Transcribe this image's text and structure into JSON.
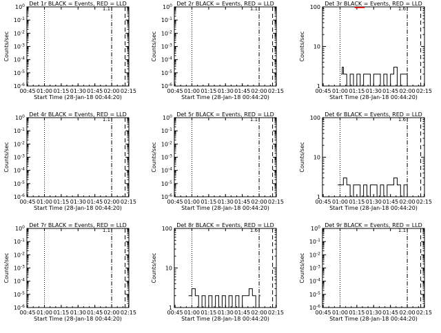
{
  "figure": {
    "background": "#ffffff",
    "ink": "#000000",
    "lld_color": "#ff0000"
  },
  "chart_data": [
    {
      "type": "line",
      "panel": "det-1r",
      "title": "Det 1r BLACK = Events, RED = LLD",
      "xlabel": "Start Time (28-Jan-18 00:44:20)",
      "ylabel": "Counts/sec",
      "xticks": [
        "00:45",
        "01:00",
        "01:15",
        "01:30",
        "01:45",
        "02:00",
        "02:15"
      ],
      "yscale": "log",
      "yticks": [
        "10^0",
        "10^-1",
        "10^-2",
        "10^-3",
        "10^-4",
        "10^-5",
        "10^-6"
      ],
      "ylim": [
        1e-06,
        1
      ],
      "series": [],
      "events_at_end": "1.1",
      "markers": [
        {
          "time": "01:00",
          "style": "dotted"
        },
        {
          "time": "02:00",
          "style": "dash-dot"
        },
        {
          "time": "02:12",
          "style": "dashed"
        }
      ]
    },
    {
      "type": "line",
      "panel": "det-2r",
      "title": "Det 2r BLACK = Events, RED = LLD",
      "xlabel": "Start Time (28-Jan-18 00:44:20)",
      "ylabel": "Counts/sec",
      "xticks": [
        "00:45",
        "01:00",
        "01:15",
        "01:30",
        "01:45",
        "02:00",
        "02:15"
      ],
      "yscale": "log",
      "yticks": [
        "10^0",
        "10^-1",
        "10^-2",
        "10^-3",
        "10^-4",
        "10^-5",
        "10^-6"
      ],
      "ylim": [
        1e-06,
        1
      ],
      "series": [],
      "events_at_end": "1.1",
      "markers": [
        {
          "time": "01:00",
          "style": "dotted"
        },
        {
          "time": "02:00",
          "style": "dash-dot"
        },
        {
          "time": "02:12",
          "style": "dashed"
        }
      ]
    },
    {
      "type": "line",
      "panel": "det-3r",
      "title": "Det 3r BLACK = Events, RED = LLD",
      "xlabel": "Start Time (28-Jan-18 00:44:20)",
      "ylabel": "Counts/sec",
      "xticks": [
        "00:45",
        "01:00",
        "01:15",
        "01:30",
        "01:45",
        "02:00",
        "02:15"
      ],
      "yscale": "log",
      "yticks": [
        "100",
        "10",
        "1"
      ],
      "ylim": [
        1,
        100
      ],
      "series": [
        {
          "color": "black",
          "x": [
            "01:01",
            "01:02",
            "01:03",
            "01:06",
            "01:09",
            "01:12",
            "01:15",
            "01:18",
            "01:21",
            "01:24",
            "01:27",
            "01:30",
            "01:33",
            "01:36",
            "01:39",
            "01:42",
            "01:45",
            "01:48",
            "01:51",
            "01:54",
            "01:57",
            "02:00"
          ],
          "y": [
            2.0,
            3.0,
            2.0,
            1.0,
            2.0,
            1.0,
            2.0,
            1.0,
            2.0,
            2.0,
            1.0,
            2.0,
            2.0,
            1.0,
            2.0,
            1.0,
            2.0,
            3.0,
            1.0,
            2.0,
            2.0,
            1.0
          ]
        },
        {
          "color": "red",
          "x": [
            "01:13",
            "01:22"
          ],
          "y": [
            100,
            100
          ]
        }
      ],
      "events_at_end": "1.6",
      "markers": [
        {
          "time": "01:00",
          "style": "dotted"
        },
        {
          "time": "02:00",
          "style": "dash-dot"
        },
        {
          "time": "02:12",
          "style": "dashed"
        }
      ]
    },
    {
      "type": "line",
      "panel": "det-4r",
      "title": "Det 4r BLACK = Events, RED = LLD",
      "xlabel": "Start Time (28-Jan-18 00:44:20)",
      "ylabel": "Counts/sec",
      "xticks": [
        "00:45",
        "01:00",
        "01:15",
        "01:30",
        "01:45",
        "02:00",
        "02:15"
      ],
      "yscale": "log",
      "yticks": [
        "10^0",
        "10^-1",
        "10^-2",
        "10^-3",
        "10^-4",
        "10^-5",
        "10^-6"
      ],
      "ylim": [
        1e-06,
        1
      ],
      "series": [],
      "events_at_end": "1.1",
      "markers": [
        {
          "time": "01:00",
          "style": "dotted"
        },
        {
          "time": "02:00",
          "style": "dash-dot"
        },
        {
          "time": "02:12",
          "style": "dashed"
        }
      ]
    },
    {
      "type": "line",
      "panel": "det-5r",
      "title": "Det 5r BLACK = Events, RED = LLD",
      "xlabel": "Start Time (28-Jan-18 00:44:20)",
      "ylabel": "Counts/sec",
      "xticks": [
        "00:45",
        "01:00",
        "01:15",
        "01:30",
        "01:45",
        "02:00",
        "02:15"
      ],
      "yscale": "log",
      "yticks": [
        "10^0",
        "10^-1",
        "10^-2",
        "10^-3",
        "10^-4",
        "10^-5",
        "10^-6"
      ],
      "ylim": [
        1e-06,
        1
      ],
      "series": [],
      "events_at_end": "1.1",
      "markers": [
        {
          "time": "01:00",
          "style": "dotted"
        },
        {
          "time": "02:00",
          "style": "dash-dot"
        },
        {
          "time": "02:12",
          "style": "dashed"
        }
      ]
    },
    {
      "type": "line",
      "panel": "det-6r",
      "title": "Det 6r BLACK = Events, RED = LLD",
      "xlabel": "Start Time (28-Jan-18 00:44:20)",
      "ylabel": "Counts/sec",
      "xticks": [
        "00:45",
        "01:00",
        "01:15",
        "01:30",
        "01:45",
        "02:00",
        "02:15"
      ],
      "yscale": "log",
      "yticks": [
        "100",
        "10",
        "1"
      ],
      "ylim": [
        1,
        100
      ],
      "series": [
        {
          "color": "black",
          "x": [
            "00:58",
            "01:01",
            "01:03",
            "01:06",
            "01:09",
            "01:12",
            "01:15",
            "01:18",
            "01:21",
            "01:24",
            "01:27",
            "01:30",
            "01:33",
            "01:36",
            "01:39",
            "01:42",
            "01:45",
            "01:48",
            "01:51",
            "01:54",
            "01:57",
            "02:00"
          ],
          "y": [
            2.0,
            2.0,
            3.0,
            2.0,
            1.0,
            2.0,
            2.0,
            1.0,
            2.0,
            1.0,
            2.0,
            2.0,
            1.0,
            2.0,
            1.0,
            2.0,
            2.0,
            3.0,
            2.0,
            1.0,
            2.0,
            1.0
          ]
        }
      ],
      "events_at_end": "1.6",
      "markers": [
        {
          "time": "01:00",
          "style": "dotted"
        },
        {
          "time": "02:00",
          "style": "dash-dot"
        },
        {
          "time": "02:12",
          "style": "dashed"
        }
      ]
    },
    {
      "type": "line",
      "panel": "det-7r",
      "title": "Det 7r BLACK = Events, RED = LLD",
      "xlabel": "Start Time (28-Jan-18 00:44:20)",
      "ylabel": "Counts/sec",
      "xticks": [
        "00:45",
        "01:00",
        "01:15",
        "01:30",
        "01:45",
        "02:00",
        "02:15"
      ],
      "yscale": "log",
      "yticks": [
        "10^0",
        "10^-1",
        "10^-2",
        "10^-3",
        "10^-4",
        "10^-5",
        "10^-6"
      ],
      "ylim": [
        1e-06,
        1
      ],
      "series": [],
      "events_at_end": "1.1",
      "markers": [
        {
          "time": "01:00",
          "style": "dotted"
        },
        {
          "time": "02:00",
          "style": "dash-dot"
        },
        {
          "time": "02:12",
          "style": "dashed"
        }
      ]
    },
    {
      "type": "line",
      "panel": "det-8r",
      "title": "Det 8r BLACK = Events, RED = LLD",
      "xlabel": "Start Time (28-Jan-18 00:44:20)",
      "ylabel": "Counts/sec",
      "xticks": [
        "00:45",
        "01:00",
        "01:15",
        "01:30",
        "01:45",
        "02:00",
        "02:15"
      ],
      "yscale": "log",
      "yticks": [
        "100",
        "10",
        "1"
      ],
      "ylim": [
        1,
        100
      ],
      "series": [
        {
          "color": "black",
          "x": [
            "00:57",
            "01:00",
            "01:03",
            "01:06",
            "01:09",
            "01:12",
            "01:15",
            "01:18",
            "01:21",
            "01:24",
            "01:27",
            "01:30",
            "01:33",
            "01:36",
            "01:39",
            "01:42",
            "01:45",
            "01:48",
            "01:51",
            "01:54",
            "01:57",
            "02:00"
          ],
          "y": [
            2.0,
            3.0,
            2.0,
            1.0,
            2.0,
            1.0,
            2.0,
            1.0,
            2.0,
            1.0,
            2.0,
            1.0,
            2.0,
            1.0,
            2.0,
            1.0,
            2.0,
            2.0,
            3.0,
            2.0,
            1.0,
            2.0
          ]
        }
      ],
      "events_at_end": "1.6",
      "markers": [
        {
          "time": "01:00",
          "style": "dotted"
        },
        {
          "time": "02:00",
          "style": "dash-dot"
        },
        {
          "time": "02:12",
          "style": "dashed"
        }
      ]
    },
    {
      "type": "line",
      "panel": "det-9r",
      "title": "Det 9r BLACK = Events, RED = LLD",
      "xlabel": "Start Time (28-Jan-18 00:44:20)",
      "ylabel": "Counts/sec",
      "xticks": [
        "00:45",
        "01:00",
        "01:15",
        "01:30",
        "01:45",
        "02:00",
        "02:15"
      ],
      "yscale": "log",
      "yticks": [
        "10^0",
        "10^-1",
        "10^-2",
        "10^-3",
        "10^-4",
        "10^-5",
        "10^-6"
      ],
      "ylim": [
        1e-06,
        1
      ],
      "series": [],
      "events_at_end": "1.1",
      "markers": [
        {
          "time": "01:00",
          "style": "dotted"
        },
        {
          "time": "02:00",
          "style": "dash-dot"
        },
        {
          "time": "02:12",
          "style": "dashed"
        }
      ]
    }
  ]
}
